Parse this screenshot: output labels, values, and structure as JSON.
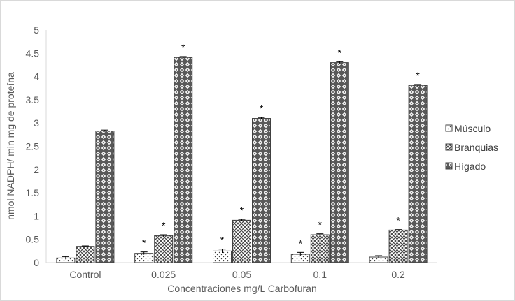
{
  "chart_data": {
    "type": "bar",
    "title": "",
    "xlabel": "Concentraciones mg/L Carbofuran",
    "ylabel": "nmol NADPH/ min mg de proteína",
    "ylim": [
      0,
      5
    ],
    "yticks": [
      "0",
      "0.5",
      "1",
      "1.5",
      "2",
      "2.5",
      "3",
      "3.5",
      "4",
      "4.5",
      "5"
    ],
    "grid": false,
    "legend_position": "right",
    "categories": [
      "Control",
      "0.025",
      "0.05",
      "0.1",
      "0.2"
    ],
    "series": [
      {
        "name": "Músculo",
        "pattern": "dots",
        "values": [
          0.1,
          0.2,
          0.25,
          0.18,
          0.12
        ],
        "errors": [
          0.03,
          0.03,
          0.04,
          0.04,
          0.03
        ],
        "significant": [
          false,
          true,
          true,
          true,
          false
        ]
      },
      {
        "name": "Branquias",
        "pattern": "crosshatch",
        "values": [
          0.35,
          0.58,
          0.91,
          0.6,
          0.7
        ],
        "errors": [
          0.01,
          0.02,
          0.02,
          0.02,
          0.01
        ],
        "significant": [
          false,
          true,
          true,
          true,
          true
        ]
      },
      {
        "name": "Hígado",
        "pattern": "diamond",
        "values": [
          2.83,
          4.41,
          3.1,
          4.3,
          3.81
        ],
        "errors": [
          0.02,
          0.02,
          0.02,
          0.02,
          0.02
        ],
        "significant": [
          false,
          true,
          true,
          true,
          true
        ]
      }
    ],
    "significance_mark": "*",
    "colors": {
      "axis": "#d9d9d9",
      "text": "#595959",
      "bar_outline": "#404040",
      "pattern": "#404040"
    }
  }
}
